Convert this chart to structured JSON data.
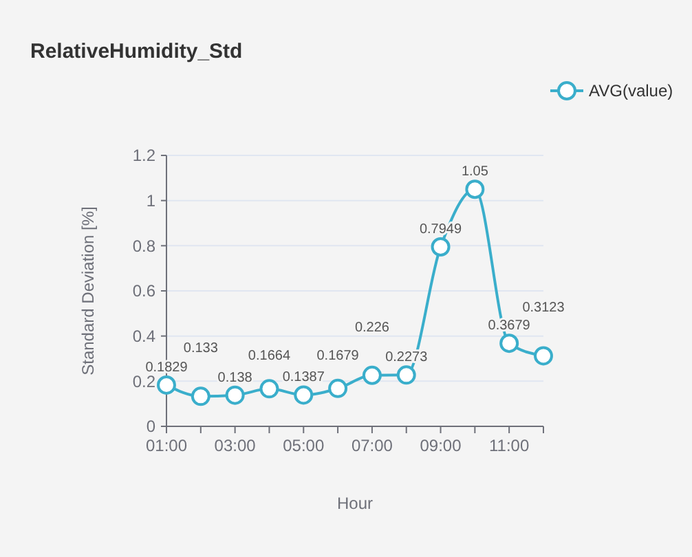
{
  "chart_data": {
    "type": "line",
    "title": "RelativeHumidity_Std",
    "xlabel": "Hour",
    "ylabel": "Standard Deviation [%]",
    "categories": [
      "01:00",
      null,
      "03:00",
      null,
      "05:00",
      null,
      "07:00",
      null,
      "09:00",
      null,
      "11:00",
      null
    ],
    "series": [
      {
        "name": "AVG(value)",
        "color": "#3aaecb",
        "values": [
          0.1829,
          0.133,
          0.138,
          0.1664,
          0.1387,
          0.1679,
          0.226,
          0.2273,
          0.7949,
          1.05,
          0.3679,
          0.3123
        ],
        "value_labels": [
          "0.1829",
          "0.133",
          "0.138",
          "0.1664",
          "0.1387",
          "0.1679",
          "0.226",
          "0.2273",
          "0.7949",
          "1.05",
          "0.3679",
          "0.3123"
        ]
      }
    ],
    "ylim": [
      0,
      1.2
    ],
    "yticks": [
      0,
      0.2,
      0.4,
      0.6,
      0.8,
      1,
      1.2
    ],
    "grid": "y",
    "legend": "top right",
    "marker": "circle",
    "line_style": "solid"
  }
}
